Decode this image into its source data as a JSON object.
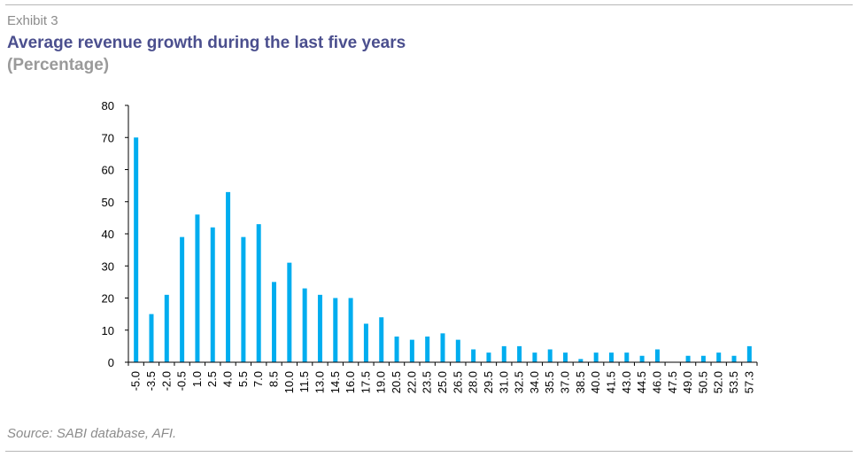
{
  "exhibit_label": "Exhibit 3",
  "colors": {
    "bar": "#00adef",
    "title": "#4b4f8e",
    "subtitle": "#9a9a9a",
    "axis": "#000000"
  },
  "chart_data": {
    "type": "bar",
    "title": "Average revenue growth during the last five years",
    "subtitle": "(Percentage)",
    "xlabel": "",
    "ylabel": "",
    "ylim": [
      0,
      80
    ],
    "yticks": [
      0,
      10,
      20,
      30,
      40,
      50,
      60,
      70,
      80
    ],
    "grid": false,
    "legend": "none",
    "categories": [
      "-5.0",
      "-3.5",
      "-2.0",
      "-0.5",
      "1.0",
      "2.5",
      "4.0",
      "5.5",
      "7.0",
      "8.5",
      "10.0",
      "11.5",
      "13.0",
      "14.5",
      "16.0",
      "17.5",
      "19.0",
      "20.5",
      "22.0",
      "23.5",
      "25.0",
      "26.5",
      "28.0",
      "29.5",
      "31.0",
      "32.5",
      "34.0",
      "35.5",
      "37.0",
      "38.5",
      "40.0",
      "41.5",
      "43.0",
      "44.5",
      "46.0",
      "47.5",
      "49.0",
      "50.5",
      "52.0",
      "53.5",
      "57.3"
    ],
    "values": [
      70,
      15,
      21,
      39,
      46,
      42,
      53,
      39,
      43,
      25,
      31,
      23,
      21,
      20,
      20,
      12,
      14,
      8,
      7,
      8,
      9,
      7,
      4,
      3,
      5,
      5,
      3,
      4,
      3,
      1,
      3,
      3,
      3,
      2,
      4,
      0,
      2,
      2,
      3,
      2,
      5
    ]
  },
  "source": "Source: SABI database, AFI."
}
